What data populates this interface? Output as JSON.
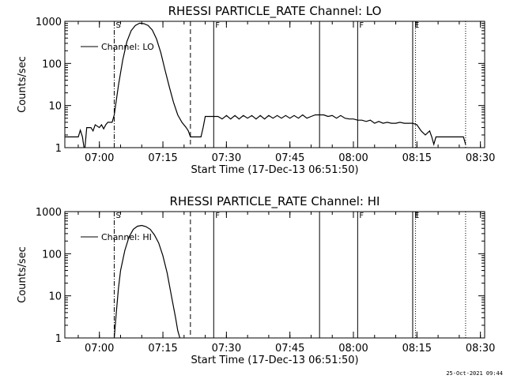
{
  "chart_data": [
    {
      "type": "line",
      "title": "RHESSI PARTICLE_RATE Channel: LO",
      "xlabel": "Start Time (17-Dec-13 06:51:50)",
      "ylabel": "Counts/sec",
      "y_scale": "log",
      "ylim": [
        1,
        1000
      ],
      "y_ticks": [
        "1",
        "10",
        "100",
        "1000"
      ],
      "xlim": [
        "06:51:50",
        "08:31:00"
      ],
      "x_ticks": [
        "07:00",
        "07:15",
        "07:30",
        "07:45",
        "08:00",
        "08:15",
        "08:30"
      ],
      "legend": {
        "label": "Channel: LO",
        "placement": "top-left"
      },
      "markers": [
        {
          "time": "07:03:30",
          "label": "S",
          "style": "dash-dot"
        },
        {
          "time": "07:21:30",
          "label": "",
          "style": "dashed"
        },
        {
          "time": "07:27:00",
          "label": "F",
          "style": "solid"
        },
        {
          "time": "07:52:00",
          "label": "",
          "style": "solid"
        },
        {
          "time": "08:01:00",
          "label": "F",
          "style": "solid"
        },
        {
          "time": "08:14:00",
          "label": "E",
          "style": "solid"
        },
        {
          "time": "08:14:40",
          "label": "",
          "style": "dotted"
        },
        {
          "time": "08:26:30",
          "label": "",
          "style": "dotted"
        }
      ],
      "series": [
        {
          "x": [
            "06:51:50",
            "06:55:00",
            "06:55:30",
            "06:56:00",
            "06:56:30",
            "06:57:00",
            "06:58:00",
            "06:58:30",
            "06:59:00",
            "07:00:00",
            "07:00:30",
            "07:01:00",
            "07:01:30",
            "07:02:00",
            "07:02:30",
            "07:03:00",
            "07:03:30",
            "07:04:30",
            "07:05:30",
            "07:06:30",
            "07:07:30",
            "07:08:30",
            "07:09:30",
            "07:10:30",
            "07:11:30",
            "07:12:30",
            "07:13:30",
            "07:14:30",
            "07:15:30",
            "07:16:30",
            "07:17:30",
            "07:18:30",
            "07:19:30",
            "07:20:30",
            "07:21:00",
            "07:21:30",
            "07:22:00",
            "07:23:00",
            "07:24:00",
            "07:24:30",
            "07:25:00",
            "07:25:30",
            "07:28:00",
            "07:29:00",
            "07:30:00",
            "07:31:00",
            "07:32:00",
            "07:33:00",
            "07:34:00",
            "07:35:00",
            "07:36:00",
            "07:37:00",
            "07:38:00",
            "07:39:00",
            "07:40:00",
            "07:41:00",
            "07:42:00",
            "07:43:00",
            "07:44:00",
            "07:45:00",
            "07:46:00",
            "07:47:00",
            "07:48:00",
            "07:49:00",
            "07:50:00",
            "07:51:00",
            "07:52:00",
            "07:53:00",
            "07:54:00",
            "07:55:00",
            "07:56:00",
            "07:57:00",
            "07:58:00",
            "07:59:00",
            "08:00:00",
            "08:01:00",
            "08:02:00",
            "08:03:00",
            "08:04:00",
            "08:05:00",
            "08:06:00",
            "08:07:00",
            "08:08:00",
            "08:09:00",
            "08:10:00",
            "08:11:00",
            "08:12:00",
            "08:13:00",
            "08:14:00",
            "08:15:00",
            "08:16:00",
            "08:17:00",
            "08:18:00",
            "08:18:30",
            "08:19:00",
            "08:19:30",
            "08:20:00",
            "08:21:00",
            "08:22:00",
            "08:23:00",
            "08:24:00",
            "08:25:00",
            "08:26:00",
            "08:26:30"
          ],
          "y": [
            1.8,
            1.8,
            2.6,
            1.8,
            0.8,
            3.0,
            3.0,
            2.5,
            3.5,
            3.0,
            3.5,
            2.8,
            3.5,
            4.0,
            4.0,
            4.0,
            6,
            30,
            120,
            330,
            600,
            800,
            900,
            880,
            800,
            620,
            380,
            180,
            70,
            28,
            12,
            6,
            4,
            3,
            2.5,
            1.8,
            1.8,
            1.8,
            1.8,
            3.0,
            5.5,
            5.5,
            5.5,
            4.8,
            5.8,
            4.8,
            5.8,
            4.8,
            5.8,
            5.0,
            5.8,
            4.8,
            5.8,
            4.8,
            5.8,
            5.0,
            5.8,
            5.0,
            5.8,
            5.0,
            5.8,
            5.0,
            6.0,
            5.0,
            5.5,
            6.0,
            6.0,
            6.0,
            5.5,
            5.8,
            5.0,
            5.8,
            5.0,
            4.8,
            4.8,
            4.5,
            4.5,
            4.2,
            4.5,
            3.8,
            4.2,
            3.8,
            4.0,
            3.8,
            3.8,
            4.0,
            3.8,
            3.8,
            3.8,
            3.5,
            2.5,
            2.0,
            2.5,
            1.8,
            1.2,
            1.8,
            1.8,
            1.8,
            1.8,
            1.8,
            1.8,
            1.8,
            1.8,
            1.2
          ]
        }
      ]
    },
    {
      "type": "line",
      "title": "RHESSI PARTICLE_RATE Channel: HI",
      "xlabel": "Start Time (17-Dec-13 06:51:50)",
      "ylabel": "Counts/sec",
      "y_scale": "log",
      "ylim": [
        1,
        1000
      ],
      "y_ticks": [
        "1",
        "10",
        "100",
        "1000"
      ],
      "xlim": [
        "06:51:50",
        "08:31:00"
      ],
      "x_ticks": [
        "07:00",
        "07:15",
        "07:30",
        "07:45",
        "08:00",
        "08:15",
        "08:30"
      ],
      "legend": {
        "label": "Channel: HI",
        "placement": "top-left"
      },
      "markers": [
        {
          "time": "07:03:30",
          "label": "S",
          "style": "dash-dot"
        },
        {
          "time": "07:21:30",
          "label": "",
          "style": "dashed"
        },
        {
          "time": "07:27:00",
          "label": "F",
          "style": "solid"
        },
        {
          "time": "07:52:00",
          "label": "",
          "style": "solid"
        },
        {
          "time": "08:01:00",
          "label": "F",
          "style": "solid"
        },
        {
          "time": "08:14:00",
          "label": "E",
          "style": "solid"
        },
        {
          "time": "08:14:40",
          "label": "",
          "style": "dotted"
        },
        {
          "time": "08:26:30",
          "label": "",
          "style": "dotted"
        }
      ],
      "series": [
        {
          "x": [
            "07:03:30",
            "07:04:00",
            "07:04:30",
            "07:05:00",
            "07:06:00",
            "07:07:00",
            "07:08:00",
            "07:09:00",
            "07:10:00",
            "07:11:00",
            "07:12:00",
            "07:13:00",
            "07:14:00",
            "07:15:00",
            "07:16:00",
            "07:17:00",
            "07:18:00",
            "07:18:30",
            "07:19:00"
          ],
          "y": [
            1.0,
            4,
            15,
            40,
            120,
            250,
            380,
            450,
            470,
            440,
            380,
            280,
            180,
            90,
            35,
            10,
            3,
            1.5,
            1.0
          ]
        }
      ]
    }
  ],
  "timestamp": "25-Oct-2021 09:44"
}
